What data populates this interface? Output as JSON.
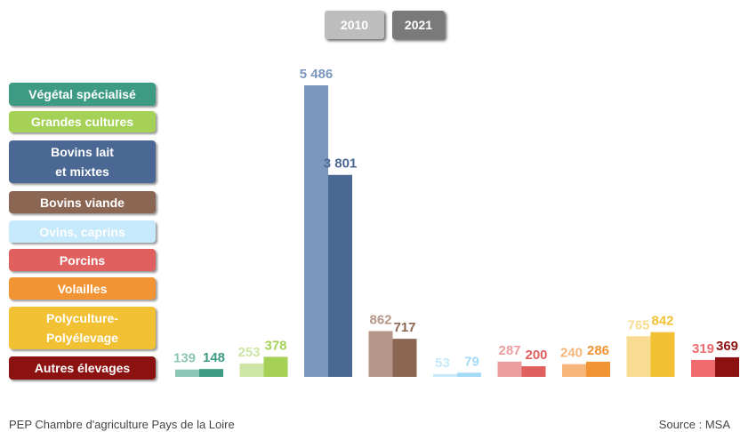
{
  "chart_data": {
    "type": "bar",
    "categories": [
      "Végétal spécialisé",
      "Grandes cultures",
      "Bovins lait\net mixtes",
      "Bovins viande",
      "Ovins, caprins",
      "Porcins",
      "Volailles",
      "Polyculture-\nPolyélevage",
      "Autres élevages"
    ],
    "series": [
      {
        "name": "2010",
        "color": "#bdbdbd",
        "colors": [
          "#8cc7b6",
          "#cde6a6",
          "#7b97bf",
          "#b59688",
          "#c6e9fb",
          "#ee9d9e",
          "#f6b67a",
          "#f8dc92",
          "#f06b6d"
        ],
        "values": [
          139,
          253,
          5486,
          862,
          53,
          287,
          240,
          765,
          319
        ],
        "value_labels": [
          "139",
          "253",
          "5 486",
          "862",
          "53",
          "287",
          "240",
          "765",
          "319"
        ]
      },
      {
        "name": "2021",
        "color": "#7a7a7a",
        "colors": [
          "#3c9b82",
          "#a5d157",
          "#4a6893",
          "#8b6653",
          "#a3dbf6",
          "#e0605f",
          "#f39434",
          "#f2c033",
          "#8c1111"
        ],
        "values": [
          148,
          378,
          3801,
          717,
          79,
          200,
          286,
          842,
          369
        ],
        "value_labels": [
          "148",
          "378",
          "3 801",
          "717",
          "79",
          "200",
          "286",
          "842",
          "369"
        ]
      }
    ],
    "footer_left": "PEP Chambre d'agriculture Pays de la Loire",
    "source": "Source : MSA"
  }
}
